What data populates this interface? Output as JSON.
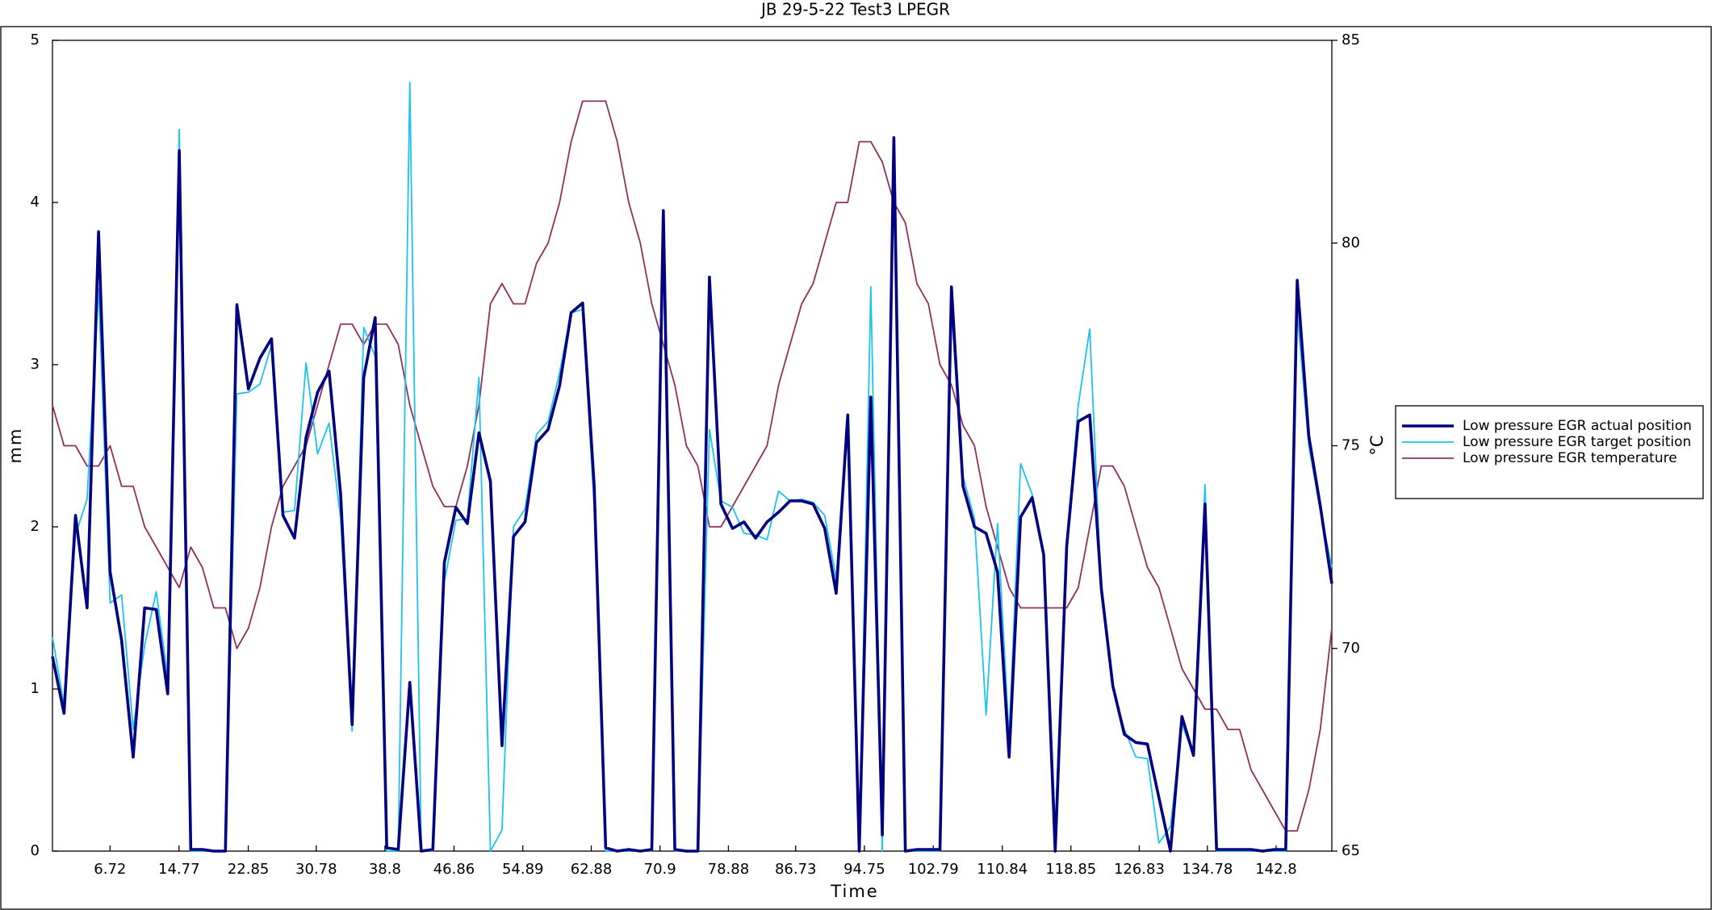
{
  "chart_data": {
    "type": "line",
    "title": "JB 29-5-22 Test3 LPEGR",
    "x_label": "Time",
    "y_label": "mm",
    "y2_label": "°C",
    "x": [
      0,
      1.35,
      2.69,
      4.04,
      5.38,
      6.73,
      8.07,
      9.42,
      10.76,
      12.11,
      13.45,
      14.8,
      16.14,
      17.49,
      18.83,
      20.18,
      21.52,
      22.87,
      24.21,
      25.56,
      26.9,
      28.25,
      29.59,
      30.94,
      32.28,
      33.63,
      34.97,
      36.32,
      37.66,
      39.01,
      40.35,
      41.7,
      43.04,
      44.39,
      45.73,
      47.08,
      48.42,
      49.77,
      51.11,
      52.46,
      53.8,
      55.15,
      56.49,
      57.84,
      59.18,
      60.53,
      61.87,
      63.22,
      64.56,
      65.91,
      67.25,
      68.6,
      69.94,
      71.29,
      72.63,
      73.98,
      75.32,
      76.67,
      78.01,
      79.36,
      80.7,
      82.05,
      83.39,
      84.74,
      86.08,
      87.43,
      88.77,
      90.12,
      91.46,
      92.81,
      94.15,
      95.5,
      96.84,
      98.19,
      99.53,
      100.88,
      102.22,
      103.57,
      104.91,
      106.26,
      107.6,
      108.95,
      110.29,
      111.64,
      112.98,
      114.33,
      115.67,
      117.02,
      118.36,
      119.71,
      121.05,
      122.4,
      123.74,
      125.09,
      126.43,
      127.78,
      129.12,
      130.47,
      131.81,
      133.16,
      134.5,
      135.85,
      137.19,
      138.54,
      139.88,
      141.23,
      142.57,
      143.92,
      145.26,
      146.61,
      147.95,
      149.3
    ],
    "xlim": [
      0,
      149.3
    ],
    "xticks": [
      6.72,
      14.77,
      22.85,
      30.78,
      38.8,
      46.86,
      54.89,
      62.88,
      70.9,
      78.88,
      86.73,
      94.75,
      102.79,
      110.84,
      118.85,
      126.83,
      134.78,
      142.8
    ],
    "ylim": [
      0,
      5
    ],
    "yticks": [
      0,
      1,
      2,
      3,
      4,
      5
    ],
    "y2lim": [
      65,
      85
    ],
    "y2ticks": [
      65,
      70,
      75,
      80,
      85
    ],
    "legend": "right",
    "series": [
      {
        "name": "Low pressure EGR actual position",
        "color": "#000080",
        "linewidth": 3.6,
        "values": [
          1.2,
          0.85,
          2.07,
          1.5,
          3.82,
          1.72,
          1.3,
          0.58,
          1.5,
          1.49,
          0.97,
          4.32,
          0.01,
          0.01,
          0,
          0,
          3.37,
          2.85,
          3.04,
          3.16,
          2.07,
          1.93,
          2.55,
          2.83,
          2.96,
          2.2,
          0.78,
          2.92,
          3.29,
          0.02,
          0.01,
          1.04,
          0,
          0.01,
          1.78,
          2.12,
          2.02,
          2.58,
          2.28,
          0.65,
          1.94,
          2.03,
          2.52,
          2.6,
          2.87,
          3.32,
          3.38,
          2.25,
          0.02,
          0,
          0.01,
          0,
          0.01,
          3.95,
          0.01,
          0,
          0,
          3.54,
          2.14,
          1.99,
          2.03,
          1.93,
          2.03,
          2.09,
          2.16,
          2.16,
          2.14,
          1.99,
          1.59,
          2.69,
          0,
          2.8,
          0.1,
          4.4,
          0,
          0.01,
          0.01,
          0.01,
          3.48,
          2.25,
          2.0,
          1.96,
          1.72,
          0.58,
          2.06,
          2.18,
          1.83,
          0,
          1.88,
          2.65,
          2.69,
          1.62,
          1.02,
          0.72,
          0.67,
          0.66,
          0.33,
          0,
          0.83,
          0.59,
          2.14,
          0.01,
          0.01,
          0.01,
          0.01,
          0,
          0.01,
          0.01,
          3.52,
          2.56,
          2.13,
          1.65
        ]
      },
      {
        "name": "Low pressure EGR target position",
        "color": "#1cc3ec",
        "linewidth": 1.8,
        "values": [
          1.32,
          0.9,
          1.95,
          2.17,
          3.47,
          1.53,
          1.58,
          0.75,
          1.27,
          1.6,
          1.07,
          4.45,
          0,
          0,
          0,
          0,
          2.82,
          2.83,
          2.88,
          3.12,
          2.09,
          2.1,
          3.01,
          2.45,
          2.64,
          2.05,
          0.74,
          3.23,
          3.05,
          0,
          0,
          4.74,
          0,
          0,
          1.66,
          2.04,
          2.05,
          2.92,
          0,
          0.13,
          2.0,
          2.11,
          2.57,
          2.65,
          2.95,
          3.32,
          3.34,
          2.12,
          0,
          0,
          0,
          0,
          0,
          3.78,
          0,
          0,
          0,
          2.6,
          2.16,
          2.12,
          1.96,
          1.95,
          1.92,
          2.22,
          2.16,
          2.17,
          2.15,
          2.07,
          1.68,
          2.68,
          0,
          3.48,
          0,
          4.25,
          0,
          0,
          0,
          0,
          3.33,
          2.31,
          2.05,
          0.84,
          2.02,
          0.7,
          2.39,
          2.2,
          1.82,
          0.15,
          1.88,
          2.75,
          3.22,
          1.6,
          1.0,
          0.75,
          0.58,
          0.57,
          0.05,
          0.15,
          0.78,
          0.6,
          2.26,
          0,
          0,
          0,
          0,
          0,
          0,
          0,
          3.32,
          2.5,
          2.1,
          1.75
        ]
      },
      {
        "name": "Low pressure EGR temperature",
        "color": "#8e3060",
        "linewidth": 1.8,
        "axis": "y2",
        "values": [
          76,
          75,
          75,
          74.5,
          74.5,
          75,
          74,
          74,
          73,
          72.5,
          72,
          71.5,
          72.5,
          72,
          71,
          71,
          70,
          70.5,
          71.5,
          73,
          74,
          74.5,
          75,
          76,
          77,
          78,
          78,
          77.5,
          78,
          78,
          77.5,
          76,
          75,
          74,
          73.5,
          73.5,
          74.5,
          76,
          78.5,
          79,
          78.5,
          78.5,
          79.5,
          80,
          81,
          82.5,
          83.5,
          83.5,
          83.5,
          82.5,
          81,
          80,
          78.5,
          77.5,
          76.5,
          75,
          74.5,
          73,
          73,
          73.5,
          74,
          74.5,
          75,
          76.5,
          77.5,
          78.5,
          79,
          80,
          81,
          81,
          82.5,
          82.5,
          82,
          81,
          80.5,
          79,
          78.5,
          77,
          76.5,
          75.5,
          75,
          73.5,
          72.5,
          71.5,
          71,
          71,
          71,
          71,
          71,
          71.5,
          73,
          74.5,
          74.5,
          74,
          73,
          72,
          71.5,
          70.5,
          69.5,
          69,
          68.5,
          68.5,
          68,
          68,
          67,
          66.5,
          66,
          65.5,
          65.5,
          66.5,
          68,
          70.5
        ]
      }
    ]
  }
}
